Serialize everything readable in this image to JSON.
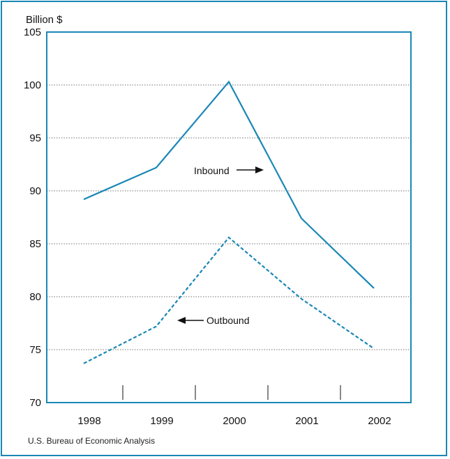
{
  "colors": {
    "frame": "#1a87b5",
    "line": "#1a87b5",
    "grid": "#444444"
  },
  "source": "U.S. Bureau of Economic Analysis",
  "chart_data": {
    "type": "line",
    "title": "",
    "xlabel": "",
    "ylabel": "Billion $",
    "ylim": [
      70,
      105
    ],
    "yticks": [
      70,
      75,
      80,
      85,
      90,
      95,
      100,
      105
    ],
    "categories": [
      "1998",
      "1999",
      "2000",
      "2001",
      "2002"
    ],
    "grid": "horizontal dotted",
    "series": [
      {
        "name": "Inbound",
        "style": "solid",
        "values": [
          89.2,
          92.2,
          100.3,
          87.4,
          80.8
        ]
      },
      {
        "name": "Outbound",
        "style": "dashed",
        "values": [
          73.7,
          77.2,
          85.6,
          79.8,
          75.1
        ]
      }
    ],
    "annotations": [
      {
        "text": "Inbound",
        "arrow": "right",
        "series": "Inbound"
      },
      {
        "text": "Outbound",
        "arrow": "left",
        "series": "Outbound"
      }
    ]
  }
}
